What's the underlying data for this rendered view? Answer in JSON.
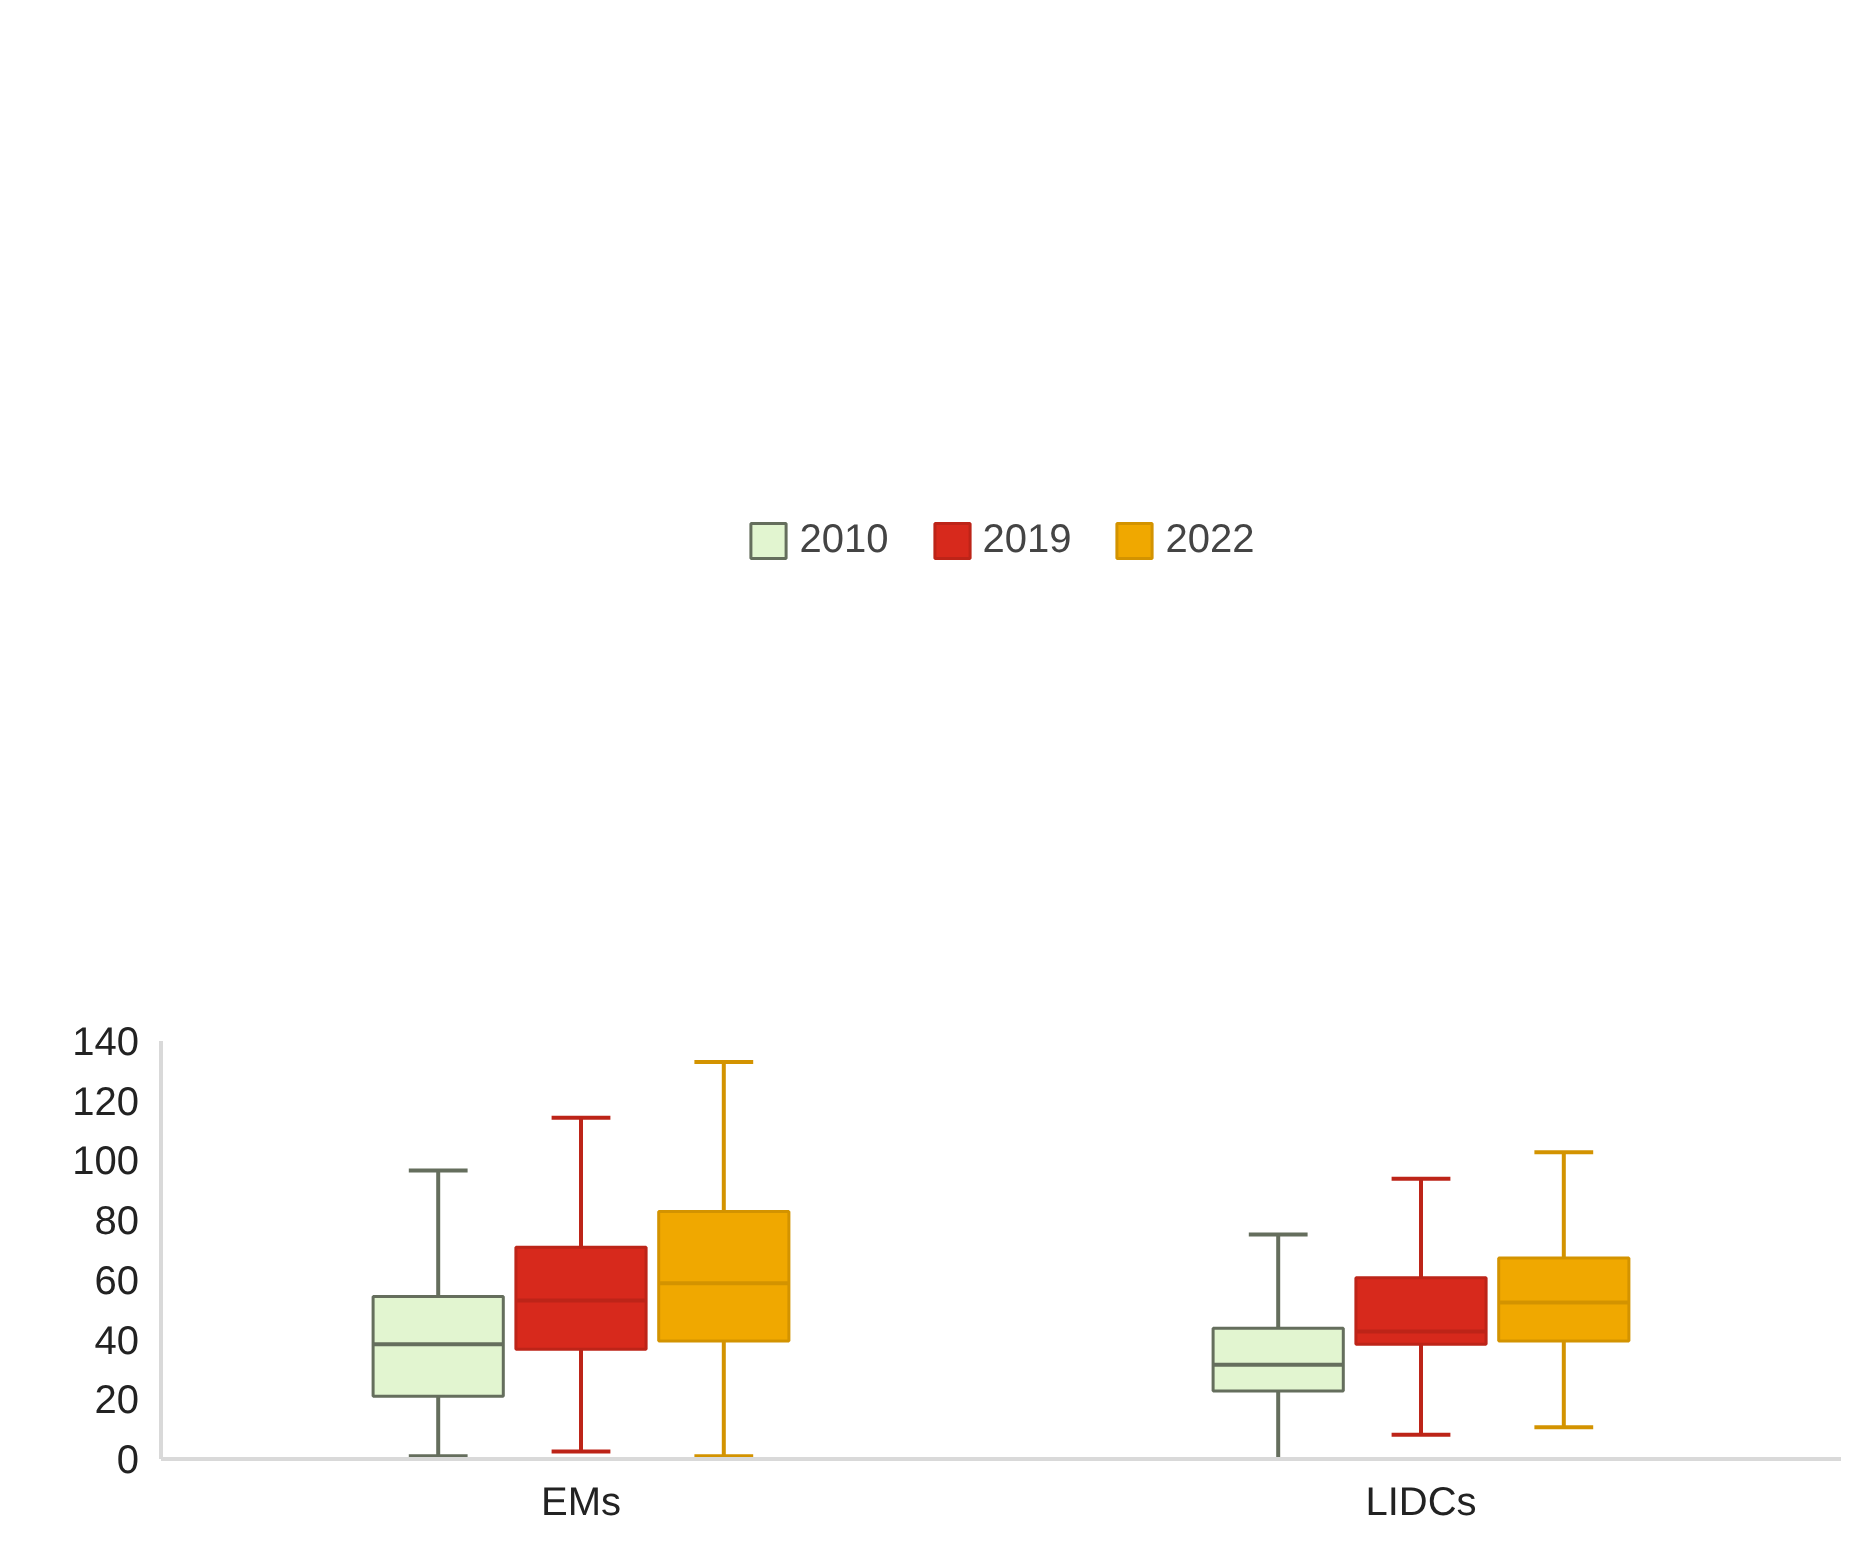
{
  "chart_data": {
    "type": "box",
    "categories": [
      "EMs",
      "LIDCs"
    ],
    "ylim": [
      0,
      140
    ],
    "yticks": [
      0,
      20,
      40,
      60,
      80,
      100,
      120,
      140
    ],
    "grid": false,
    "legend": "top",
    "series": [
      {
        "name": "2010",
        "color": "#e2f5d0",
        "boxes": [
          {
            "low": 0.9,
            "q1": 21,
            "median": 38.4,
            "q3": 54.4,
            "high": 96.6
          },
          {
            "low": 0,
            "q1": 22.8,
            "median": 31.6,
            "q3": 43.8,
            "high": 75.2
          }
        ]
      },
      {
        "name": "2019",
        "color": "#d7291c",
        "boxes": [
          {
            "low": 2.5,
            "q1": 36.8,
            "median": 53.1,
            "q3": 70.9,
            "high": 114.3
          },
          {
            "low": 8.1,
            "q1": 38.4,
            "median": 42.7,
            "q3": 60.7,
            "high": 93.9
          }
        ]
      },
      {
        "name": "2022",
        "color": "#f0a800",
        "boxes": [
          {
            "low": 0.9,
            "q1": 39.5,
            "median": 58.9,
            "q3": 82.9,
            "high": 133
          },
          {
            "low": 10.6,
            "q1": 39.5,
            "median": 52.4,
            "q3": 67.3,
            "high": 102.7
          }
        ]
      }
    ]
  }
}
